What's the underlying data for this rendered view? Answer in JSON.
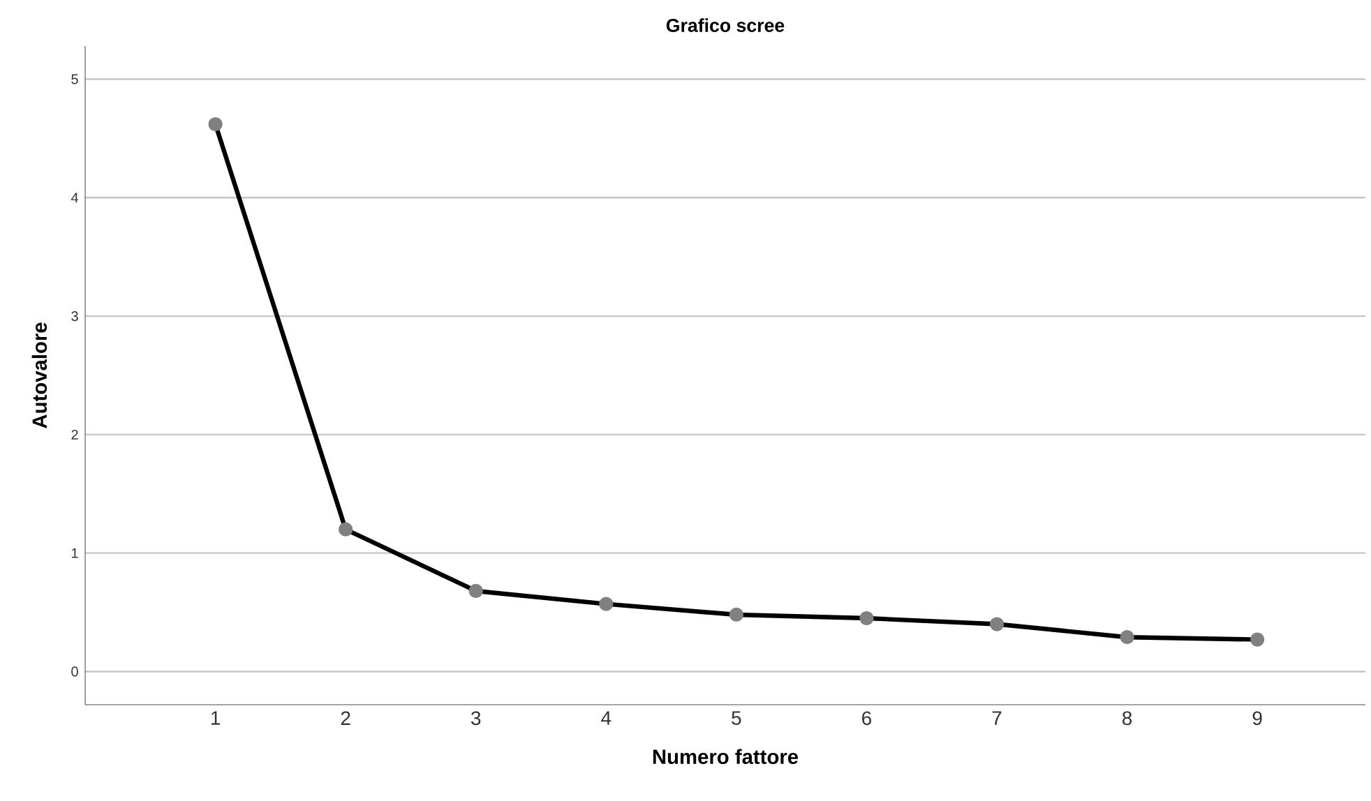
{
  "chart_data": {
    "type": "line",
    "title": "Grafico scree",
    "xlabel": "Numero fattore",
    "ylabel": "Autovalore",
    "categories": [
      "1",
      "2",
      "3",
      "4",
      "5",
      "6",
      "7",
      "8",
      "9"
    ],
    "series": [
      {
        "color": "#000000",
        "values": [
          4.62,
          1.2,
          0.68,
          0.57,
          0.48,
          0.45,
          0.4,
          0.29,
          0.27
        ]
      }
    ],
    "ylim": [
      -0.28,
      5.28
    ],
    "yticks": [
      0,
      1,
      2,
      3,
      4,
      5
    ],
    "grid": "y",
    "marker": "circle",
    "line_style": "solid"
  }
}
